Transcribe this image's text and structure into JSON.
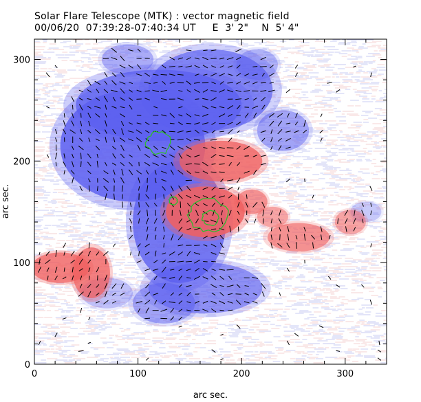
{
  "chart_data": {
    "type": "heatmap",
    "title": "Solar Flare Telescope (MTK) : vector magnetic field",
    "subtitle": "00/06/20  07:39:28-07:40:34 UT     E  3' 2\"    N  5' 4\"",
    "xlabel": "arc sec.",
    "ylabel": "arc sec.",
    "xlim": [
      0,
      340
    ],
    "ylim": [
      0,
      320
    ],
    "x_ticks": [
      0,
      100,
      200,
      300
    ],
    "y_ticks": [
      0,
      100,
      200,
      300
    ],
    "colors": {
      "positive": "#f06060",
      "negative": "#5a5ef0",
      "contour": "#2ebd2e",
      "vector": "#000000",
      "background": "#ffffff"
    },
    "regions": [
      {
        "polarity": "negative",
        "cx": 95,
        "cy": 215,
        "rx": 70,
        "ry": 55,
        "strength": 0.95
      },
      {
        "polarity": "negative",
        "cx": 120,
        "cy": 255,
        "rx": 80,
        "ry": 35,
        "strength": 0.85
      },
      {
        "polarity": "negative",
        "cx": 170,
        "cy": 270,
        "rx": 60,
        "ry": 40,
        "strength": 0.8
      },
      {
        "polarity": "negative",
        "cx": 140,
        "cy": 140,
        "rx": 45,
        "ry": 60,
        "strength": 0.9
      },
      {
        "polarity": "negative",
        "cx": 165,
        "cy": 75,
        "rx": 55,
        "ry": 25,
        "strength": 0.7
      },
      {
        "polarity": "negative",
        "cx": 125,
        "cy": 60,
        "rx": 30,
        "ry": 20,
        "strength": 0.55
      },
      {
        "polarity": "negative",
        "cx": 240,
        "cy": 230,
        "rx": 25,
        "ry": 20,
        "strength": 0.55
      },
      {
        "polarity": "negative",
        "cx": 90,
        "cy": 300,
        "rx": 25,
        "ry": 15,
        "strength": 0.5
      },
      {
        "polarity": "negative",
        "cx": 70,
        "cy": 70,
        "rx": 25,
        "ry": 15,
        "strength": 0.35
      },
      {
        "polarity": "negative",
        "cx": 215,
        "cy": 295,
        "rx": 20,
        "ry": 15,
        "strength": 0.45
      },
      {
        "polarity": "negative",
        "cx": 320,
        "cy": 150,
        "rx": 15,
        "ry": 10,
        "strength": 0.3
      },
      {
        "polarity": "positive",
        "cx": 165,
        "cy": 150,
        "rx": 38,
        "ry": 25,
        "strength": 1.0
      },
      {
        "polarity": "positive",
        "cx": 180,
        "cy": 200,
        "rx": 40,
        "ry": 20,
        "strength": 0.9
      },
      {
        "polarity": "positive",
        "cx": 210,
        "cy": 160,
        "rx": 15,
        "ry": 12,
        "strength": 0.7
      },
      {
        "polarity": "positive",
        "cx": 25,
        "cy": 95,
        "rx": 28,
        "ry": 15,
        "strength": 0.85
      },
      {
        "polarity": "positive",
        "cx": 55,
        "cy": 90,
        "rx": 18,
        "ry": 25,
        "strength": 0.85
      },
      {
        "polarity": "positive",
        "cx": 255,
        "cy": 125,
        "rx": 30,
        "ry": 14,
        "strength": 0.7
      },
      {
        "polarity": "positive",
        "cx": 305,
        "cy": 140,
        "rx": 15,
        "ry": 12,
        "strength": 0.55
      },
      {
        "polarity": "positive",
        "cx": 230,
        "cy": 145,
        "rx": 15,
        "ry": 10,
        "strength": 0.55
      }
    ],
    "contours": [
      {
        "cx": 120,
        "cy": 218,
        "rx": 12,
        "ry": 11
      },
      {
        "cx": 168,
        "cy": 147,
        "rx": 19,
        "ry": 16
      },
      {
        "cx": 170,
        "cy": 144,
        "rx": 8,
        "ry": 7
      },
      {
        "cx": 134,
        "cy": 161,
        "rx": 4,
        "ry": 4
      }
    ],
    "vector_grid": {
      "x_start": 5,
      "x_end": 335,
      "y_start": 5,
      "y_end": 315,
      "step": 8
    }
  }
}
